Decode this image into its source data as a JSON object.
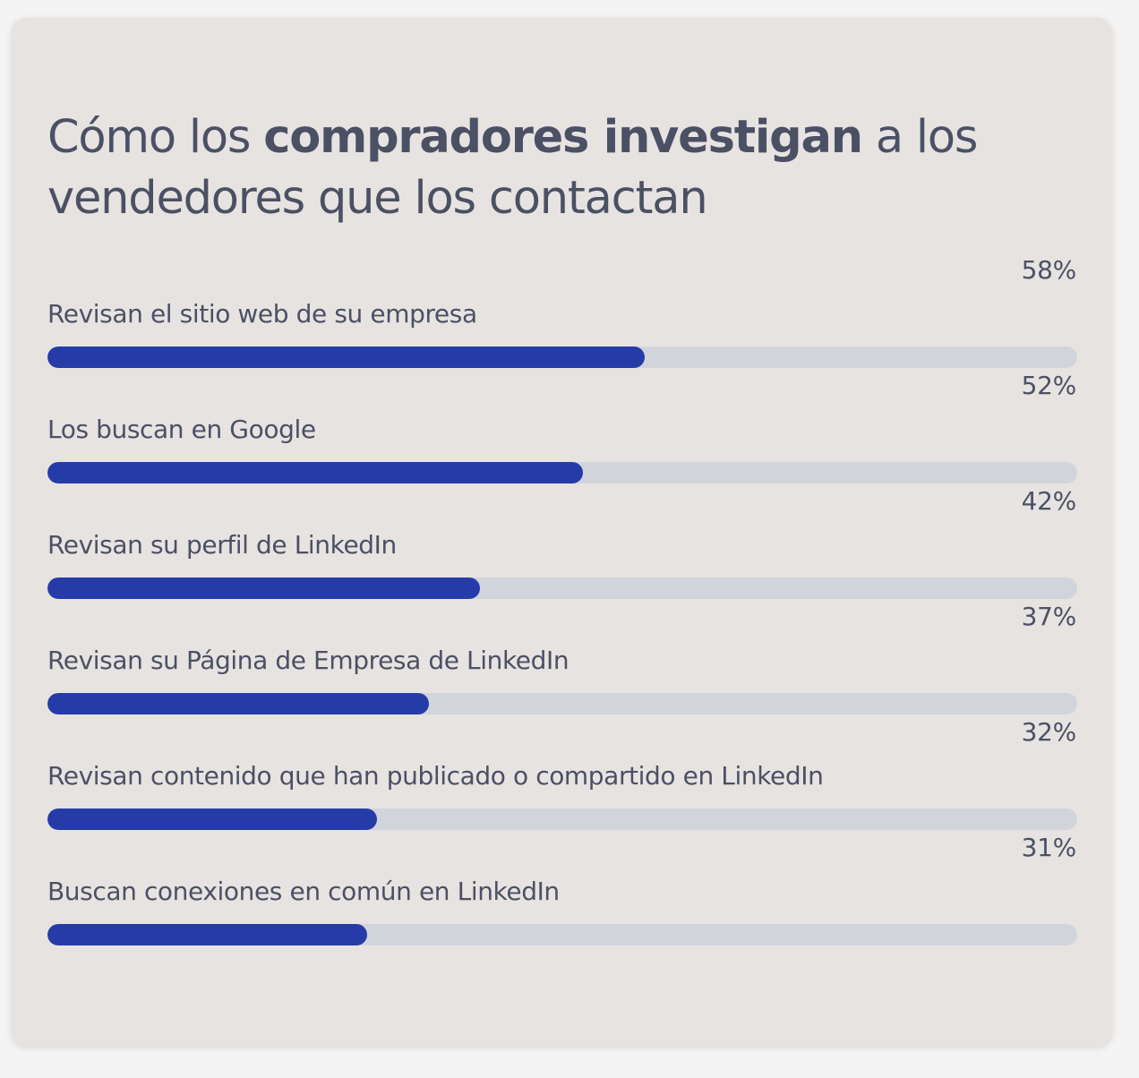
{
  "title": {
    "part1": "Cómo los ",
    "bold": "compradores investigan",
    "part2": " a los vendedores que los contactan"
  },
  "colors": {
    "bar_fill": "#253ca8",
    "bar_track": "#d2d4dc",
    "card_background": "#e7e3e1",
    "text": "#4b5064"
  },
  "chart_data": {
    "type": "bar",
    "orientation": "horizontal",
    "unit": "%",
    "xlim": [
      0,
      100
    ],
    "grid": false,
    "categories": [
      "Revisan el sitio web de su empresa",
      "Los buscan en Google",
      "Revisan su perfil de LinkedIn",
      "Revisan su Página de Empresa de LinkedIn",
      "Revisan contenido que han publicado o compartido en LinkedIn",
      "Buscan conexiones en común en LinkedIn"
    ],
    "values": [
      58,
      52,
      42,
      37,
      32,
      31
    ],
    "value_labels": [
      "58%",
      "52%",
      "42%",
      "37%",
      "32%",
      "31%"
    ]
  }
}
